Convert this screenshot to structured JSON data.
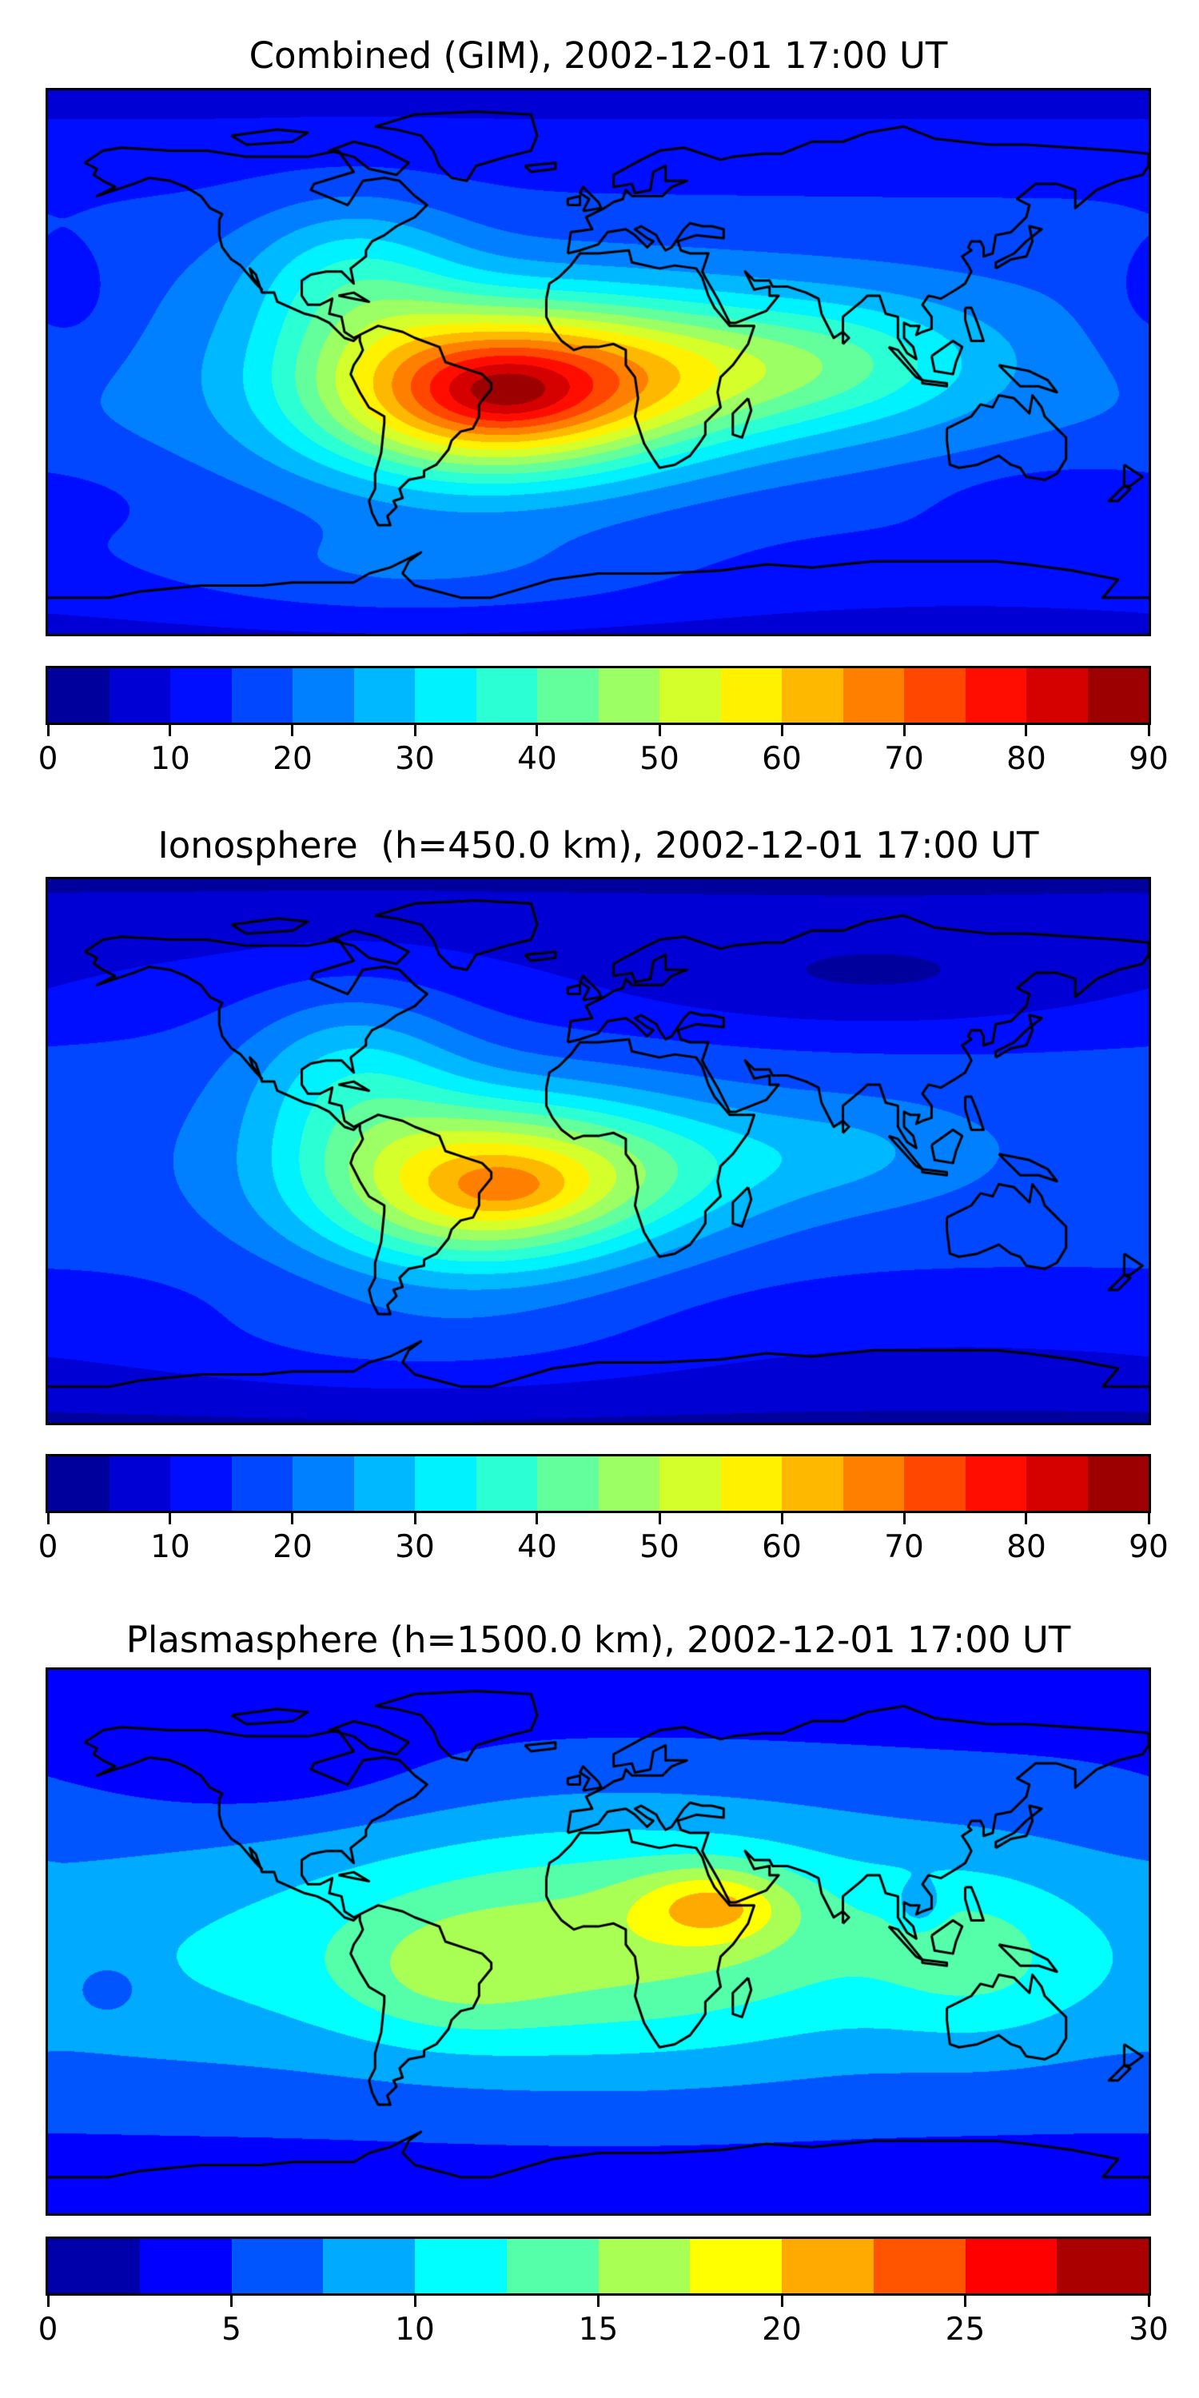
{
  "chart_data": [
    {
      "type": "heatmap",
      "title": "Combined (GIM), 2002-12-01 17:00 UT",
      "projection": "plate-carree",
      "xlim": [
        -180,
        180
      ],
      "ylim": [
        -90,
        90
      ],
      "colormap": "jet",
      "levels_range": [
        0,
        90
      ],
      "level_step": 5,
      "colorbar_ticks": [
        "0",
        "10",
        "20",
        "30",
        "40",
        "50",
        "60",
        "70",
        "80",
        "90"
      ],
      "colorbar_tick_values": [
        0,
        10,
        20,
        30,
        40,
        50,
        60,
        70,
        80,
        90
      ],
      "field_model": {
        "base_pole": 8,
        "base_equator_extra": 12,
        "components": [
          {
            "lon": -38,
            "lat": -10,
            "slon": 42,
            "slat": 20,
            "amp": 52
          },
          {
            "lon": -30,
            "lat": -10,
            "slon": 15,
            "slat": 7,
            "amp": 8
          },
          {
            "lon": 25,
            "lat": -3,
            "slon": 45,
            "slat": 18,
            "amp": 22
          },
          {
            "lon": 85,
            "lat": 0,
            "slon": 35,
            "slat": 15,
            "amp": 12
          },
          {
            "lon": -80,
            "lat": 28,
            "slon": 25,
            "slat": 18,
            "amp": 15
          },
          {
            "lon": -60,
            "lat": -70,
            "slon": 60,
            "slat": 12,
            "amp": 8
          },
          {
            "lon": -175,
            "lat": 20,
            "slon": 15,
            "slat": 15,
            "amp": -6
          },
          {
            "lon": 160,
            "lat": -45,
            "slon": 30,
            "slat": 8,
            "amp": -6
          }
        ]
      }
    },
    {
      "type": "heatmap",
      "title": "Ionosphere  (h=450.0 km), 2002-12-01 17:00 UT",
      "projection": "plate-carree",
      "xlim": [
        -180,
        180
      ],
      "ylim": [
        -90,
        90
      ],
      "colormap": "jet",
      "levels_range": [
        0,
        90
      ],
      "level_step": 5,
      "colorbar_ticks": [
        "0",
        "10",
        "20",
        "30",
        "40",
        "50",
        "60",
        "70",
        "80",
        "90"
      ],
      "colorbar_tick_values": [
        0,
        10,
        20,
        30,
        40,
        50,
        60,
        70,
        80,
        90
      ],
      "field_model": {
        "base_pole": 4,
        "base_equator_extra": 14,
        "components": [
          {
            "lon": -40,
            "lat": -12,
            "slon": 40,
            "slat": 20,
            "amp": 40
          },
          {
            "lon": -30,
            "lat": -12,
            "slon": 14,
            "slat": 6,
            "amp": 6
          },
          {
            "lon": 15,
            "lat": -5,
            "slon": 40,
            "slat": 16,
            "amp": 12
          },
          {
            "lon": -80,
            "lat": 25,
            "slon": 25,
            "slat": 20,
            "amp": 14
          },
          {
            "lon": 85,
            "lat": 0,
            "slon": 30,
            "slat": 12,
            "amp": 6
          },
          {
            "lon": 90,
            "lat": 55,
            "slon": 60,
            "slat": 12,
            "amp": -7
          },
          {
            "lon": -60,
            "lat": -65,
            "slon": 60,
            "slat": 12,
            "amp": 6
          }
        ]
      }
    },
    {
      "type": "heatmap",
      "title": "Plasmasphere (h=1500.0 km), 2002-12-01 17:00 UT",
      "projection": "plate-carree",
      "xlim": [
        -180,
        180
      ],
      "ylim": [
        -90,
        90
      ],
      "colormap": "jet",
      "levels_range": [
        0,
        30
      ],
      "level_step": 2.5,
      "colorbar_ticks": [
        "0",
        "5",
        "10",
        "15",
        "20",
        "25",
        "30"
      ],
      "colorbar_tick_values": [
        0,
        5,
        10,
        15,
        20,
        25,
        30
      ],
      "field_model": {
        "base_pole": 3,
        "base_equator_extra": 4,
        "components": [
          {
            "lon": 5,
            "lat": 0,
            "slon": 70,
            "slat": 28,
            "amp": 9
          },
          {
            "lon": 38,
            "lat": 12,
            "slon": 18,
            "slat": 9,
            "amp": 7
          },
          {
            "lon": -50,
            "lat": -12,
            "slon": 25,
            "slat": 15,
            "amp": 3
          },
          {
            "lon": 125,
            "lat": -5,
            "slon": 25,
            "slat": 20,
            "amp": 4
          },
          {
            "lon": 105,
            "lat": 12,
            "slon": 5,
            "slat": 5,
            "amp": -4
          },
          {
            "lon": -110,
            "lat": 55,
            "slon": 40,
            "slat": 12,
            "amp": -2
          },
          {
            "lon": -160,
            "lat": -15,
            "slon": 8,
            "slat": 6,
            "amp": -3
          },
          {
            "lon": -150,
            "lat": -10,
            "slon": 60,
            "slat": 25,
            "amp": 2
          }
        ]
      }
    }
  ]
}
